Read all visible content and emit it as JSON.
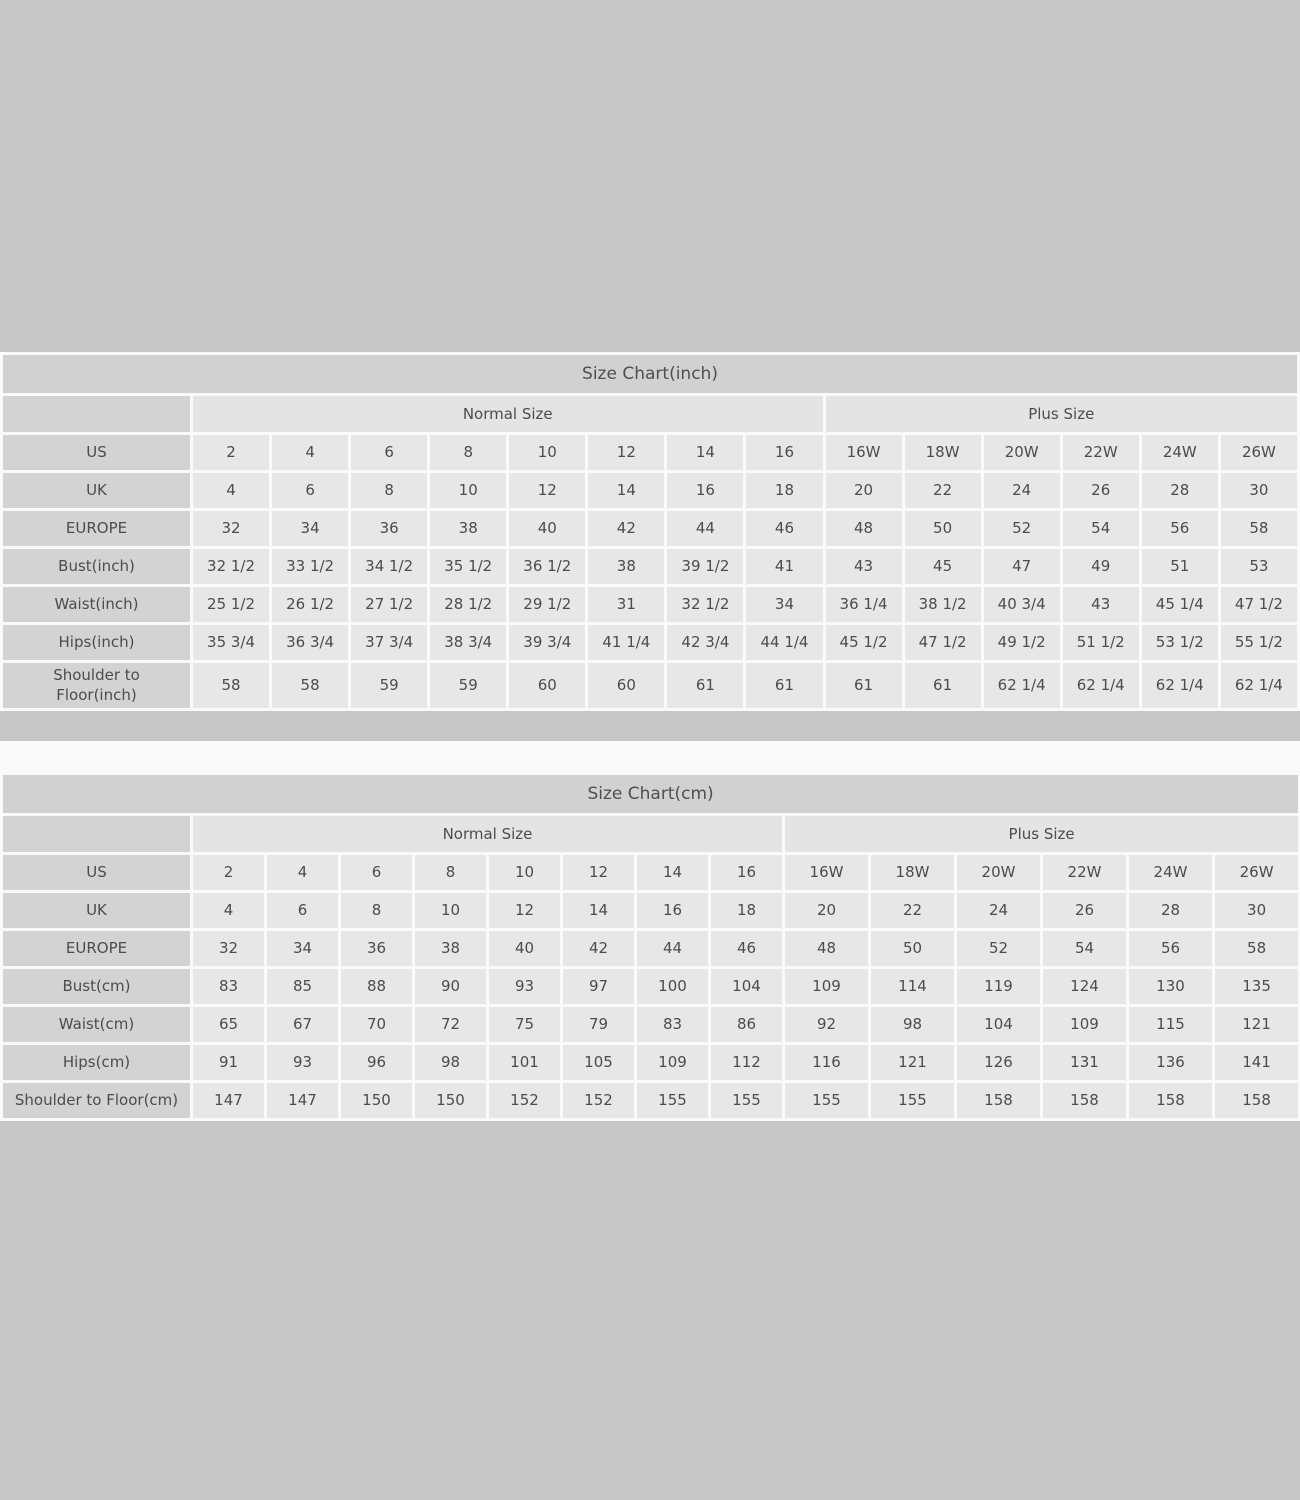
{
  "page": {
    "background_color": "#c7c7c7",
    "separator_color": "#fafafa",
    "title_bar_color": "#d1d1d1",
    "label_cell_color": "#d3d3d3",
    "group_cell_color": "#e4e4e4",
    "data_cell_color": "#e7e7e7",
    "text_color": "#4c4c4c"
  },
  "tables": [
    {
      "title": "Size Chart(inch)",
      "groups": [
        {
          "label": "Normal Size"
        },
        {
          "label": "Plus Size"
        }
      ],
      "rows": [
        {
          "label": "US",
          "values": [
            "2",
            "4",
            "6",
            "8",
            "10",
            "12",
            "14",
            "16",
            "16W",
            "18W",
            "20W",
            "22W",
            "24W",
            "26W"
          ]
        },
        {
          "label": "UK",
          "values": [
            "4",
            "6",
            "8",
            "10",
            "12",
            "14",
            "16",
            "18",
            "20",
            "22",
            "24",
            "26",
            "28",
            "30"
          ]
        },
        {
          "label": "EUROPE",
          "values": [
            "32",
            "34",
            "36",
            "38",
            "40",
            "42",
            "44",
            "46",
            "48",
            "50",
            "52",
            "54",
            "56",
            "58"
          ]
        },
        {
          "label": "Bust(inch)",
          "values": [
            "32 1/2",
            "33 1/2",
            "34 1/2",
            "35 1/2",
            "36 1/2",
            "38",
            "39 1/2",
            "41",
            "43",
            "45",
            "47",
            "49",
            "51",
            "53"
          ]
        },
        {
          "label": "Waist(inch)",
          "values": [
            "25 1/2",
            "26 1/2",
            "27 1/2",
            "28 1/2",
            "29 1/2",
            "31",
            "32 1/2",
            "34",
            "36 1/4",
            "38 1/2",
            "40 3/4",
            "43",
            "45 1/4",
            "47 1/2"
          ]
        },
        {
          "label": "Hips(inch)",
          "values": [
            "35 3/4",
            "36 3/4",
            "37 3/4",
            "38 3/4",
            "39 3/4",
            "41 1/4",
            "42 3/4",
            "44 1/4",
            "45 1/2",
            "47 1/2",
            "49 1/2",
            "51 1/2",
            "53 1/2",
            "55 1/2"
          ]
        },
        {
          "label": "Shoulder to\nFloor(inch)",
          "values": [
            "58",
            "58",
            "59",
            "59",
            "60",
            "60",
            "61",
            "61",
            "61",
            "61",
            "62 1/4",
            "62 1/4",
            "62 1/4",
            "62 1/4"
          ]
        }
      ]
    },
    {
      "title": "Size Chart(cm)",
      "groups": [
        {
          "label": "Normal Size"
        },
        {
          "label": "Plus Size"
        }
      ],
      "rows": [
        {
          "label": "US",
          "values": [
            "2",
            "4",
            "6",
            "8",
            "10",
            "12",
            "14",
            "16",
            "16W",
            "18W",
            "20W",
            "22W",
            "24W",
            "26W"
          ]
        },
        {
          "label": "UK",
          "values": [
            "4",
            "6",
            "8",
            "10",
            "12",
            "14",
            "16",
            "18",
            "20",
            "22",
            "24",
            "26",
            "28",
            "30"
          ]
        },
        {
          "label": "EUROPE",
          "values": [
            "32",
            "34",
            "36",
            "38",
            "40",
            "42",
            "44",
            "46",
            "48",
            "50",
            "52",
            "54",
            "56",
            "58"
          ]
        },
        {
          "label": "Bust(cm)",
          "values": [
            "83",
            "85",
            "88",
            "90",
            "93",
            "97",
            "100",
            "104",
            "109",
            "114",
            "119",
            "124",
            "130",
            "135"
          ]
        },
        {
          "label": "Waist(cm)",
          "values": [
            "65",
            "67",
            "70",
            "72",
            "75",
            "79",
            "83",
            "86",
            "92",
            "98",
            "104",
            "109",
            "115",
            "121"
          ]
        },
        {
          "label": "Hips(cm)",
          "values": [
            "91",
            "93",
            "96",
            "98",
            "101",
            "105",
            "109",
            "112",
            "116",
            "121",
            "126",
            "131",
            "136",
            "141"
          ]
        },
        {
          "label": "Shoulder to Floor(cm)",
          "values": [
            "147",
            "147",
            "150",
            "150",
            "152",
            "152",
            "155",
            "155",
            "155",
            "155",
            "158",
            "158",
            "158",
            "158"
          ]
        }
      ]
    }
  ]
}
